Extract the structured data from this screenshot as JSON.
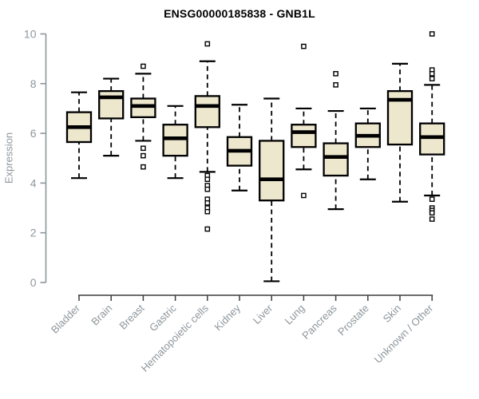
{
  "chart_data": {
    "type": "boxplot",
    "title": "ENSG00000185838 - GNB1L",
    "ylabel": "Expression",
    "ylim": [
      0,
      10
    ],
    "yticks": [
      0,
      2,
      4,
      6,
      8,
      10
    ],
    "grid": false,
    "legend": false,
    "categories": [
      "Bladder",
      "Brain",
      "Breast",
      "Gastric",
      "Hematopoietic cells",
      "Kidney",
      "Liver",
      "Lung",
      "Pancreas",
      "Prostate",
      "Skin",
      "Unknown / Other"
    ],
    "series": [
      {
        "name": "Bladder",
        "whisker_low": 4.2,
        "q1": 5.65,
        "median": 6.25,
        "q3": 6.85,
        "whisker_high": 7.65,
        "outliers": []
      },
      {
        "name": "Brain",
        "whisker_low": 5.1,
        "q1": 6.6,
        "median": 7.45,
        "q3": 7.7,
        "whisker_high": 8.2,
        "outliers": []
      },
      {
        "name": "Breast",
        "whisker_low": 5.7,
        "q1": 6.65,
        "median": 7.1,
        "q3": 7.4,
        "whisker_high": 8.4,
        "outliers": [
          8.7,
          5.4,
          5.1,
          4.65
        ]
      },
      {
        "name": "Gastric",
        "whisker_low": 4.2,
        "q1": 5.1,
        "median": 5.8,
        "q3": 6.35,
        "whisker_high": 7.1,
        "outliers": []
      },
      {
        "name": "Hematopoietic cells",
        "whisker_low": 4.45,
        "q1": 6.25,
        "median": 7.1,
        "q3": 7.5,
        "whisker_high": 8.9,
        "outliers": [
          9.6,
          4.3,
          4.15,
          3.9,
          3.75,
          3.35,
          3.2,
          3.0,
          2.85,
          2.15
        ]
      },
      {
        "name": "Kidney",
        "whisker_low": 3.7,
        "q1": 4.7,
        "median": 5.3,
        "q3": 5.85,
        "whisker_high": 7.15,
        "outliers": []
      },
      {
        "name": "Liver",
        "whisker_low": 0.05,
        "q1": 3.3,
        "median": 4.15,
        "q3": 5.7,
        "whisker_high": 7.4,
        "outliers": []
      },
      {
        "name": "Lung",
        "whisker_low": 4.55,
        "q1": 5.45,
        "median": 6.05,
        "q3": 6.35,
        "whisker_high": 7.0,
        "outliers": [
          9.5,
          3.5
        ]
      },
      {
        "name": "Pancreas",
        "whisker_low": 2.95,
        "q1": 4.3,
        "median": 5.05,
        "q3": 5.6,
        "whisker_high": 6.9,
        "outliers": [
          8.4,
          7.95
        ]
      },
      {
        "name": "Prostate",
        "whisker_low": 4.15,
        "q1": 5.45,
        "median": 5.9,
        "q3": 6.4,
        "whisker_high": 7.0,
        "outliers": []
      },
      {
        "name": "Skin",
        "whisker_low": 3.25,
        "q1": 5.55,
        "median": 7.35,
        "q3": 7.7,
        "whisker_high": 8.8,
        "outliers": []
      },
      {
        "name": "Unknown / Other",
        "whisker_low": 3.5,
        "q1": 5.15,
        "median": 5.85,
        "q3": 6.4,
        "whisker_high": 7.95,
        "outliers": [
          10.0,
          8.55,
          8.4,
          8.2,
          3.35,
          3.0,
          2.9,
          2.8,
          2.55
        ]
      }
    ],
    "colors": {
      "background": "#FFFFFF",
      "box_fill": "#EDE7CE",
      "box_stroke": "#000000",
      "median": "#000000",
      "whisker": "#000000",
      "outlier_fill": "#FFFFFF",
      "outlier_stroke": "#000000",
      "axis_text": "#8E969C",
      "y_axis_line": "#8E969C",
      "x_axis_line": "#3C3C3C",
      "title_color": "#000000"
    }
  }
}
